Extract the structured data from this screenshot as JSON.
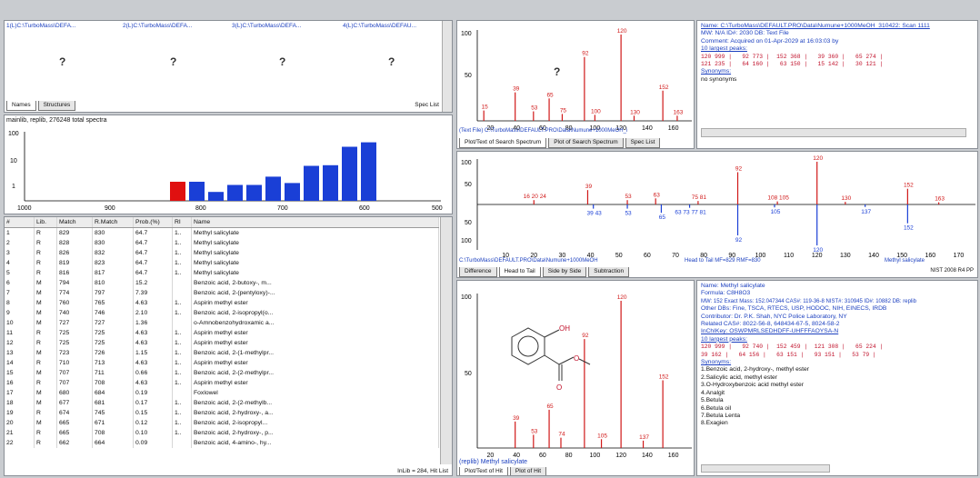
{
  "top_left": {
    "files": [
      "1(L)C:\\TurboMass\\DEFA...",
      "2(L)C:\\TurboMass\\DEFA...",
      "3(L)C:\\TurboMass\\DEFA...",
      "4(L)C:\\TurboMass\\DEFAU..."
    ],
    "placeholder": "?",
    "tabs": [
      "Names",
      "Structures"
    ],
    "spec_list": "Spec List"
  },
  "histogram": {
    "title": "mainlib, replib, 276248 total spectra",
    "y_labels": [
      "100",
      "10",
      "1"
    ],
    "x_labels": [
      "1000",
      "900",
      "800",
      "700",
      "600",
      "500"
    ],
    "bars": [
      0.3,
      0.3,
      0.14,
      0.25,
      0.25,
      0.38,
      0.28,
      0.55,
      0.56,
      0.85,
      0.92
    ]
  },
  "hit_list": {
    "columns": [
      "#",
      "Lib.",
      "Match",
      "R.Match",
      "Prob.(%)",
      "RI",
      "Name"
    ],
    "rows": [
      [
        "1",
        "R",
        "829",
        "830",
        "64.7",
        "1..",
        "Methyl salicylate"
      ],
      [
        "2",
        "R",
        "828",
        "830",
        "64.7",
        "1..",
        "Methyl salicylate"
      ],
      [
        "3",
        "R",
        "826",
        "832",
        "64.7",
        "1..",
        "Methyl salicylate"
      ],
      [
        "4",
        "R",
        "819",
        "823",
        "64.7",
        "1..",
        "Methyl salicylate"
      ],
      [
        "5",
        "R",
        "816",
        "817",
        "64.7",
        "1..",
        "Methyl salicylate"
      ],
      [
        "6",
        "M",
        "794",
        "810",
        "15.2",
        "",
        "Benzoic acid, 2-butoxy-, m..."
      ],
      [
        "7",
        "M",
        "774",
        "797",
        "7.39",
        "",
        "Benzoic acid, 2-(pentyloxy)-..."
      ],
      [
        "8",
        "M",
        "760",
        "765",
        "4.63",
        "1..",
        "Aspirin methyl ester"
      ],
      [
        "9",
        "M",
        "740",
        "746",
        "2.10",
        "1..",
        "Benzoic acid, 2-isopropyl(o..."
      ],
      [
        "10",
        "M",
        "727",
        "727",
        "1.36",
        "",
        "o-Amnobenzohydroxamic a..."
      ],
      [
        "11",
        "R",
        "725",
        "725",
        "4.63",
        "1..",
        "Aspirin methyl ester"
      ],
      [
        "12",
        "R",
        "725",
        "725",
        "4.63",
        "1..",
        "Aspirin methyl ester"
      ],
      [
        "13",
        "M",
        "723",
        "726",
        "1.15",
        "1..",
        "Benzoic acid, 2-(1-methylpr..."
      ],
      [
        "14",
        "R",
        "710",
        "713",
        "4.63",
        "1..",
        "Aspirin methyl ester"
      ],
      [
        "15",
        "M",
        "707",
        "711",
        "0.66",
        "1..",
        "Benzoic acid, 2-(2-methylpr..."
      ],
      [
        "16",
        "R",
        "707",
        "708",
        "4.63",
        "1..",
        "Aspirin methyl ester"
      ],
      [
        "17",
        "M",
        "680",
        "684",
        "0.19",
        "",
        "Foxlowel"
      ],
      [
        "18",
        "M",
        "677",
        "681",
        "0.17",
        "1..",
        "Benzoic acid, 2-(2-methylb..."
      ],
      [
        "19",
        "R",
        "674",
        "745",
        "0.15",
        "1..",
        "Benzoic acid, 2-hydroxy-, a..."
      ],
      [
        "20",
        "M",
        "665",
        "671",
        "0.12",
        "1..",
        "Benzoic acid, 2-isopropyl..."
      ],
      [
        "21",
        "R",
        "665",
        "708",
        "0.10",
        "1..",
        "Benzoic acid, 2-hydroxy-, p..."
      ],
      [
        "22",
        "R",
        "662",
        "664",
        "0.09",
        "",
        "Benzoic acid, 4-amino-, hy..."
      ]
    ],
    "footer": "InLib = 284, Hit List"
  },
  "search_spectrum": {
    "y_labels": [
      "100",
      "50"
    ],
    "x_labels": [
      "20",
      "40",
      "60",
      "80",
      "100",
      "120",
      "140",
      "160"
    ],
    "peak_labels": [
      "120",
      "92",
      "39",
      "65",
      "152",
      "15",
      "53",
      "75",
      "100",
      "130",
      "163"
    ],
    "placeholder": "?",
    "file_line": "(Text File) C:\\TurboMass\\DEFAULT.PRO\\Data\\Numune+1000MeOH_i",
    "tabs": [
      "Plot/Text of Search Spectrum",
      "Plot of Search Spectrum",
      "Spec List"
    ]
  },
  "search_info": {
    "name": "Name: C:\\TurboMass\\DEFAULT.PRO\\Data\\Numune+1000MeOH_310422: Scan 1111",
    "mw": "MW: N/A  ID#: 2030  DB: Text File",
    "comment": "Comment: Acquired on 01-Apr-2029 at 16:03:03 by",
    "largest": "10 largest peaks:",
    "peaks1": "120 999 |   92 773 |  152 368 |   39 360 |   65 274 |",
    "peaks2": "121 235 |   64 160 |   63 150 |   15 142 |   30 121 |",
    "synonyms": "Synonyms:",
    "no_syn": "no synonyms"
  },
  "head_to_tail": {
    "y_labels": [
      "100",
      "50",
      "50",
      "100"
    ],
    "x_labels": [
      "10",
      "20",
      "30",
      "40",
      "50",
      "60",
      "70",
      "80",
      "90",
      "100",
      "110",
      "120",
      "130",
      "140",
      "150",
      "160",
      "170"
    ],
    "top_labels": [
      "120",
      "92",
      "152",
      "16 20 24",
      "39",
      "53",
      "63",
      "75 81",
      "108 105",
      "130",
      "163"
    ],
    "bottom_labels": [
      "39 43",
      "53",
      "65",
      "63 73 77 81",
      "92",
      "105",
      "137",
      "152",
      "120"
    ],
    "file_line": "C:\\TurboMass\\DEFAULT.PRO\\Data\\Numune+1000MeOH",
    "ht_line": "Head to Tail MF=829 RMF=830",
    "lib_name": "Methyl salicylate",
    "tabs": [
      "Difference",
      "Head to Tail",
      "Side by Side",
      "Subtraction"
    ],
    "corner": "NIST 2008 R4 PP"
  },
  "library_spectrum": {
    "y_labels": [
      "100",
      "50"
    ],
    "x_labels": [
      "20",
      "40",
      "60",
      "80",
      "100",
      "120",
      "140",
      "160"
    ],
    "peak_labels": [
      "120",
      "92",
      "65",
      "152",
      "39",
      "53",
      "74",
      "105",
      "137"
    ],
    "struct_labels": [
      "OH",
      "O",
      "O"
    ],
    "caption": "(replib) Methyl salicylate",
    "tabs": [
      "Plot/Text of Hit",
      "Plot of Hit"
    ]
  },
  "compound_info": {
    "name": "Name: Methyl salicylate",
    "formula": "Formula: C8H8O3",
    "mw": "MW: 152  Exact Mass: 152.047344  CAS#: 119-36-8  NIST#: 310945  ID#: 10882  DB: replib",
    "other_dbs": "Other DBs: Fine, TSCA, RTECS, USP, HODOC, NIH, EINECS, IRDB",
    "contributor": "Contributor: Dr. P.K. Shah, NYC Police Laboratory, NY",
    "related_cas": "Related CAS#: 8022-56-8, 648434-67-5, 8024-58-2",
    "inchikey": "InChIKey: OSWPMRLSEDHDFF-UHFFFAOYSA-N",
    "largest": "10 largest peaks:",
    "peaks1": "120 999 |   92 740 |  152 459 |  121 308 |   65 224 |",
    "peaks2": "39 162 |   64 156 |   63 151 |   93 151 |   53 79 |",
    "synonyms": [
      "Synonyms:",
      "1.Benzoic acid, 2-hydroxy-, methyl ester",
      "2.Salicylic acid, methyl ester",
      "3.O-Hydroxybenzoic acid methyl ester",
      "4.Analgit",
      "5.Betula",
      "6.Betula oil",
      "7.Betula Lenta",
      "8.Exagien"
    ]
  }
}
